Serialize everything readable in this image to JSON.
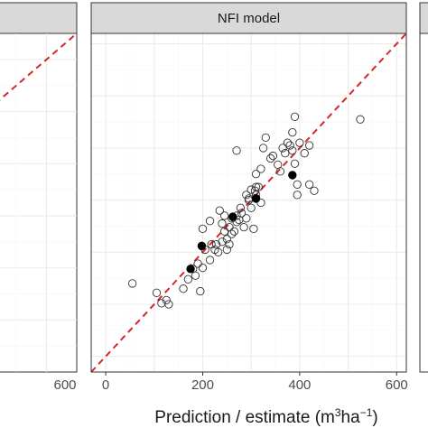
{
  "chart_data": [
    {
      "type": "scatter",
      "panel": "left (partially visible)",
      "strip_title": "",
      "xlim": [
        0,
        650
      ],
      "ylim": [
        0,
        650
      ],
      "xticks": [
        600
      ],
      "tick_labels": {
        "x": [
          "600"
        ]
      },
      "identity_line": {
        "style": "dashed",
        "color": "#d62728"
      },
      "series": [
        {
          "marker": "open-circle",
          "points": [
            [
              460,
              405
            ],
            [
              440,
              390
            ],
            [
              455,
              387
            ],
            [
              470,
              385
            ],
            [
              470,
              380
            ],
            [
              430,
              350
            ],
            [
              480,
              330
            ],
            [
              440,
              310
            ],
            [
              460,
              280
            ]
          ]
        }
      ]
    },
    {
      "type": "scatter",
      "strip_title": "NFI model",
      "xlim": [
        -30,
        620
      ],
      "ylim": [
        -30,
        620
      ],
      "xticks": [
        0,
        200,
        400,
        600
      ],
      "tick_labels": {
        "x": [
          "0",
          "200",
          "400",
          "600"
        ]
      },
      "grid": true,
      "identity_line": {
        "style": "dashed",
        "color": "#d62728"
      },
      "series": [
        {
          "marker": "open-circle",
          "points": [
            [
              55,
              140
            ],
            [
              105,
              122
            ],
            [
              115,
              102
            ],
            [
              125,
              108
            ],
            [
              130,
              100
            ],
            [
              160,
              130
            ],
            [
              170,
              148
            ],
            [
              185,
              155
            ],
            [
              195,
              125
            ],
            [
              180,
              168
            ],
            [
              190,
              178
            ],
            [
              205,
              205
            ],
            [
              215,
              185
            ],
            [
              218,
              215
            ],
            [
              225,
              205
            ],
            [
              228,
              215
            ],
            [
              232,
              200
            ],
            [
              240,
              220
            ],
            [
              245,
              240
            ],
            [
              250,
              225
            ],
            [
              255,
              248
            ],
            [
              260,
              265
            ],
            [
              265,
              240
            ],
            [
              270,
              258
            ],
            [
              270,
              270
            ],
            [
              275,
              262
            ],
            [
              278,
              285
            ],
            [
              280,
              275
            ],
            [
              285,
              248
            ],
            [
              290,
              265
            ],
            [
              295,
              300
            ],
            [
              300,
              285
            ],
            [
              305,
              245
            ],
            [
              308,
              318
            ],
            [
              310,
              310
            ],
            [
              315,
              325
            ],
            [
              320,
              295
            ],
            [
              290,
              310
            ],
            [
              240,
              255
            ],
            [
              245,
              270
            ],
            [
              310,
              325
            ],
            [
              300,
              320
            ],
            [
              295,
              303
            ],
            [
              255,
              215
            ],
            [
              260,
              235
            ],
            [
              250,
              205
            ],
            [
              200,
              170
            ],
            [
              200,
              245
            ],
            [
              235,
              280
            ],
            [
              215,
              260
            ],
            [
              310,
              350
            ],
            [
              320,
              360
            ],
            [
              325,
              400
            ],
            [
              330,
              420
            ],
            [
              340,
              380
            ],
            [
              345,
              385
            ],
            [
              355,
              368
            ],
            [
              360,
              355
            ],
            [
              365,
              400
            ],
            [
              370,
              390
            ],
            [
              375,
              410
            ],
            [
              380,
              405
            ],
            [
              385,
              395
            ],
            [
              390,
              370
            ],
            [
              395,
              330
            ],
            [
              400,
              410
            ],
            [
              420,
              330
            ],
            [
              430,
              318
            ],
            [
              395,
              310
            ],
            [
              410,
              390
            ],
            [
              420,
              405
            ],
            [
              270,
              395
            ],
            [
              525,
              455
            ],
            [
              385,
              430
            ],
            [
              390,
              460
            ]
          ]
        },
        {
          "marker": "filled-circle",
          "points": [
            [
              175,
              168
            ],
            [
              198,
              212
            ],
            [
              262,
              268
            ],
            [
              310,
              303
            ],
            [
              385,
              348
            ]
          ]
        }
      ]
    }
  ],
  "xlabel_prefix": "Prediction / estimate (m",
  "xlabel_sup1": "3",
  "xlabel_mid": "ha",
  "xlabel_sup2": "−1",
  "xlabel_suffix": ")",
  "colors": {
    "strip_bg": "#d9d9d9",
    "strip_border": "#333333",
    "panel_border": "#333333",
    "grid_major": "#ebebeb",
    "grid_minor": "#f5f5f5",
    "ref_line": "#d62728",
    "point": "#333333"
  }
}
